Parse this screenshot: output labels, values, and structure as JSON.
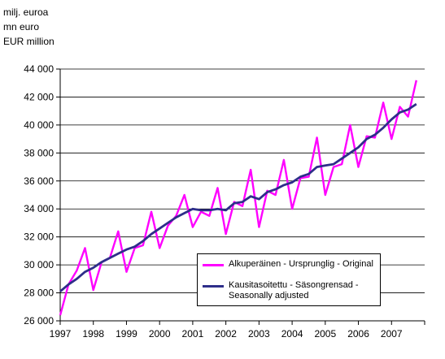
{
  "unit_lines": [
    "milj. euroa",
    "mn euro",
    "EUR million"
  ],
  "chart_data": {
    "type": "line",
    "ylim": [
      26000,
      44000
    ],
    "y_ticks": [
      26000,
      28000,
      30000,
      32000,
      34000,
      36000,
      38000,
      40000,
      42000,
      44000
    ],
    "y_tick_labels": [
      "26 000",
      "28 000",
      "30 000",
      "32 000",
      "34 000",
      "36 000",
      "38 000",
      "40 000",
      "42 000",
      "44 000"
    ],
    "x_ticks": [
      1997,
      1998,
      1999,
      2000,
      2001,
      2002,
      2003,
      2004,
      2005,
      2006,
      2007
    ],
    "x_tick_labels": [
      "1997",
      "1998",
      "1999",
      "2000",
      "2001",
      "2002",
      "2003",
      "2004",
      "2005",
      "2006",
      "2007"
    ],
    "xlim": [
      1997,
      2008
    ],
    "grid": "horizontal",
    "legend_position": "lower-right",
    "series": [
      {
        "name": "Alkuperäinen - Ursprunglig - Original",
        "color": "#FF00FF",
        "x": [
          1997.0,
          1997.25,
          1997.5,
          1997.75,
          1998.0,
          1998.25,
          1998.5,
          1998.75,
          1999.0,
          1999.25,
          1999.5,
          1999.75,
          2000.0,
          2000.25,
          2000.5,
          2000.75,
          2001.0,
          2001.25,
          2001.5,
          2001.75,
          2002.0,
          2002.25,
          2002.5,
          2002.75,
          2003.0,
          2003.25,
          2003.5,
          2003.75,
          2004.0,
          2004.25,
          2004.5,
          2004.75,
          2005.0,
          2005.25,
          2005.5,
          2005.75,
          2006.0,
          2006.25,
          2006.5,
          2006.75,
          2007.0,
          2007.25,
          2007.5,
          2007.75
        ],
        "values": [
          26400,
          28600,
          29600,
          31200,
          28200,
          30200,
          30500,
          32400,
          29500,
          31200,
          31400,
          33800,
          31200,
          32800,
          33500,
          35000,
          32700,
          33800,
          33500,
          35500,
          32200,
          34500,
          34200,
          36800,
          32700,
          35300,
          35000,
          37500,
          34000,
          36200,
          36300,
          39100,
          35000,
          37000,
          37200,
          40000,
          37000,
          39200,
          39100,
          41600,
          39000,
          41300,
          40600,
          43200
        ]
      },
      {
        "name": "Kausitasoitettu - Säsongrensad - Seasonally adjusted",
        "color": "#2E2E8A",
        "x": [
          1997.0,
          1997.25,
          1997.5,
          1997.75,
          1998.0,
          1998.25,
          1998.5,
          1998.75,
          1999.0,
          1999.25,
          1999.5,
          1999.75,
          2000.0,
          2000.25,
          2000.5,
          2000.75,
          2001.0,
          2001.25,
          2001.5,
          2001.75,
          2002.0,
          2002.25,
          2002.5,
          2002.75,
          2003.0,
          2003.25,
          2003.5,
          2003.75,
          2004.0,
          2004.25,
          2004.5,
          2004.75,
          2005.0,
          2005.25,
          2005.5,
          2005.75,
          2006.0,
          2006.25,
          2006.5,
          2006.75,
          2007.0,
          2007.25,
          2007.5,
          2007.75
        ],
        "values": [
          28100,
          28600,
          29000,
          29500,
          29800,
          30200,
          30500,
          30800,
          31100,
          31300,
          31700,
          32200,
          32600,
          33000,
          33400,
          33700,
          34000,
          33900,
          33900,
          34000,
          33900,
          34400,
          34500,
          34900,
          34700,
          35200,
          35400,
          35700,
          35900,
          36300,
          36500,
          37000,
          37100,
          37200,
          37600,
          38000,
          38400,
          39000,
          39300,
          39800,
          40400,
          40900,
          41100,
          41500
        ]
      }
    ]
  }
}
